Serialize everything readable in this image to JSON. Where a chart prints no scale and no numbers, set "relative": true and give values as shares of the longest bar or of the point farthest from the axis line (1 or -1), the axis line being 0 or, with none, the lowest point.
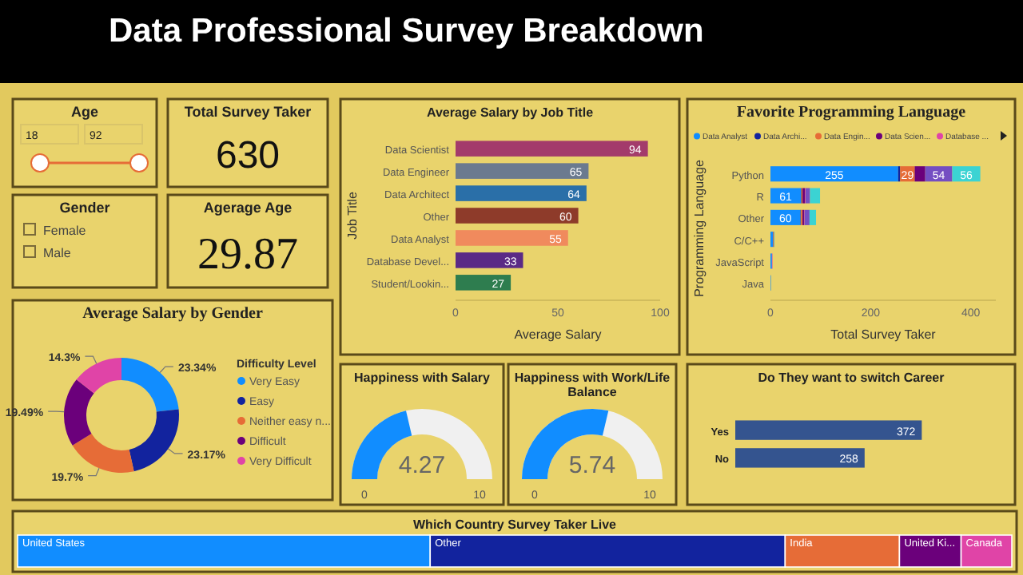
{
  "chart_data": [
    {
      "type": "other",
      "title": "Data Professional Survey Breakdown"
    },
    {
      "type": "other",
      "title": "Age",
      "annotations": [
        "18",
        "92"
      ]
    },
    {
      "type": "other",
      "title": "Total Survey Taker",
      "annotations": [
        "630"
      ]
    },
    {
      "type": "other",
      "title": "Gender",
      "annotations": [
        "Female",
        "Male"
      ]
    },
    {
      "type": "other",
      "title": "Agerage Age",
      "annotations": [
        "29.87"
      ]
    },
    {
      "type": "donut",
      "title": "Average Salary by Gender",
      "legend_title": "Difficulty Level",
      "legend": "right",
      "categories": [
        "Very Easy",
        "Easy",
        "Neither easy n...",
        "Difficult",
        "Very Difficult"
      ],
      "values": [
        23.34,
        23.17,
        19.7,
        19.49,
        14.3
      ],
      "value_labels": [
        "23.34%",
        "23.17%",
        "19.7%",
        "19.49%",
        "14.3%"
      ],
      "colors": [
        "#118dff",
        "#12239e",
        "#e66c37",
        "#6b007b",
        "#e044a7"
      ]
    },
    {
      "type": "bar",
      "orientation": "horizontal",
      "title": "Average Salary by Job Title",
      "xlabel": "Average Salary",
      "ylabel": "Job Title",
      "categories": [
        "Data Scientist",
        "Data Engineer",
        "Data Architect",
        "Other",
        "Data Analyst",
        "Database Devel...",
        "Student/Lookin..."
      ],
      "values": [
        94,
        65,
        64,
        60,
        55,
        33,
        27
      ],
      "colors": [
        "#a33b6b",
        "#6b7a8f",
        "#2a6fa8",
        "#8e3b2a",
        "#f08a5d",
        "#5b2a86",
        "#2e7d4f"
      ],
      "xlim": [
        0,
        100
      ],
      "xticks": [
        0,
        50,
        100
      ],
      "data_labels": true
    },
    {
      "type": "bar",
      "orientation": "horizontal",
      "stacked": true,
      "title": "Favorite Programming Language",
      "xlabel": "Total Survey Taker",
      "ylabel": "Programming Language",
      "legend": "top",
      "categories": [
        "Python",
        "R",
        "Other",
        "C/C++",
        "JavaScript",
        "Java"
      ],
      "xlim": [
        0,
        450
      ],
      "xticks": [
        0,
        200,
        400
      ],
      "series": [
        {
          "name": "Data Analyst",
          "color": "#118dff",
          "values": [
            255,
            61,
            60,
            5,
            3,
            1
          ],
          "value_labels": [
            "255",
            "61",
            "60",
            null,
            null,
            null
          ]
        },
        {
          "name": "Data Archi...",
          "color": "#12239e",
          "values": [
            4,
            1,
            1,
            0,
            0,
            0
          ]
        },
        {
          "name": "Data Engin...",
          "color": "#e66c37",
          "values": [
            29,
            2,
            3,
            1,
            0,
            0
          ],
          "value_labels": [
            "29",
            null,
            null,
            null,
            null,
            null
          ]
        },
        {
          "name": "Data Scien...",
          "color": "#6b007b",
          "values": [
            21,
            5,
            3,
            1,
            0,
            0
          ]
        },
        {
          "name": "Database ...",
          "color": "#e044a7",
          "values": [
            0,
            1,
            1,
            0,
            1,
            0
          ]
        },
        {
          "color": "#744ec2",
          "values": [
            54,
            9,
            10,
            0,
            0,
            0
          ],
          "value_labels": [
            "54",
            null,
            null,
            null,
            null,
            null
          ]
        },
        {
          "color": "#3bd3d3",
          "values": [
            56,
            20,
            13,
            1,
            null,
            0
          ],
          "value_labels": [
            "56",
            null,
            null,
            null,
            null,
            null
          ]
        }
      ]
    },
    {
      "type": "other",
      "title": "Happiness with Salary",
      "annotations": [
        "4.27",
        "0",
        "10"
      ]
    },
    {
      "type": "other",
      "title": "Happiness with Work/Life Balance",
      "annotations": [
        "5.74",
        "0",
        "10"
      ]
    },
    {
      "type": "bar",
      "orientation": "horizontal",
      "title": "Do They want to switch Career",
      "categories": [
        "Yes",
        "No"
      ],
      "values": [
        372,
        258
      ],
      "colors": [
        "#34548f",
        "#34548f"
      ],
      "data_labels": true,
      "tick_labels": "y"
    },
    {
      "type": "bar",
      "orientation": "horizontal",
      "stacked": true,
      "relative": true,
      "tick_labels": false,
      "legend": false,
      "title": "Which Country Survey Taker Live",
      "categories": [
        null
      ],
      "series": [
        {
          "name": "United States",
          "color": "#118dff",
          "values": [
            0.415
          ]
        },
        {
          "name": "Other",
          "color": "#12239e",
          "values": [
            0.357
          ]
        },
        {
          "name": "India",
          "color": "#e66c37",
          "values": [
            0.115
          ]
        },
        {
          "name": "United Ki...",
          "color": "#6b007b",
          "values": [
            0.062
          ]
        },
        {
          "name": "Canada",
          "color": "#e044a7",
          "values": [
            0.051
          ]
        }
      ]
    }
  ]
}
